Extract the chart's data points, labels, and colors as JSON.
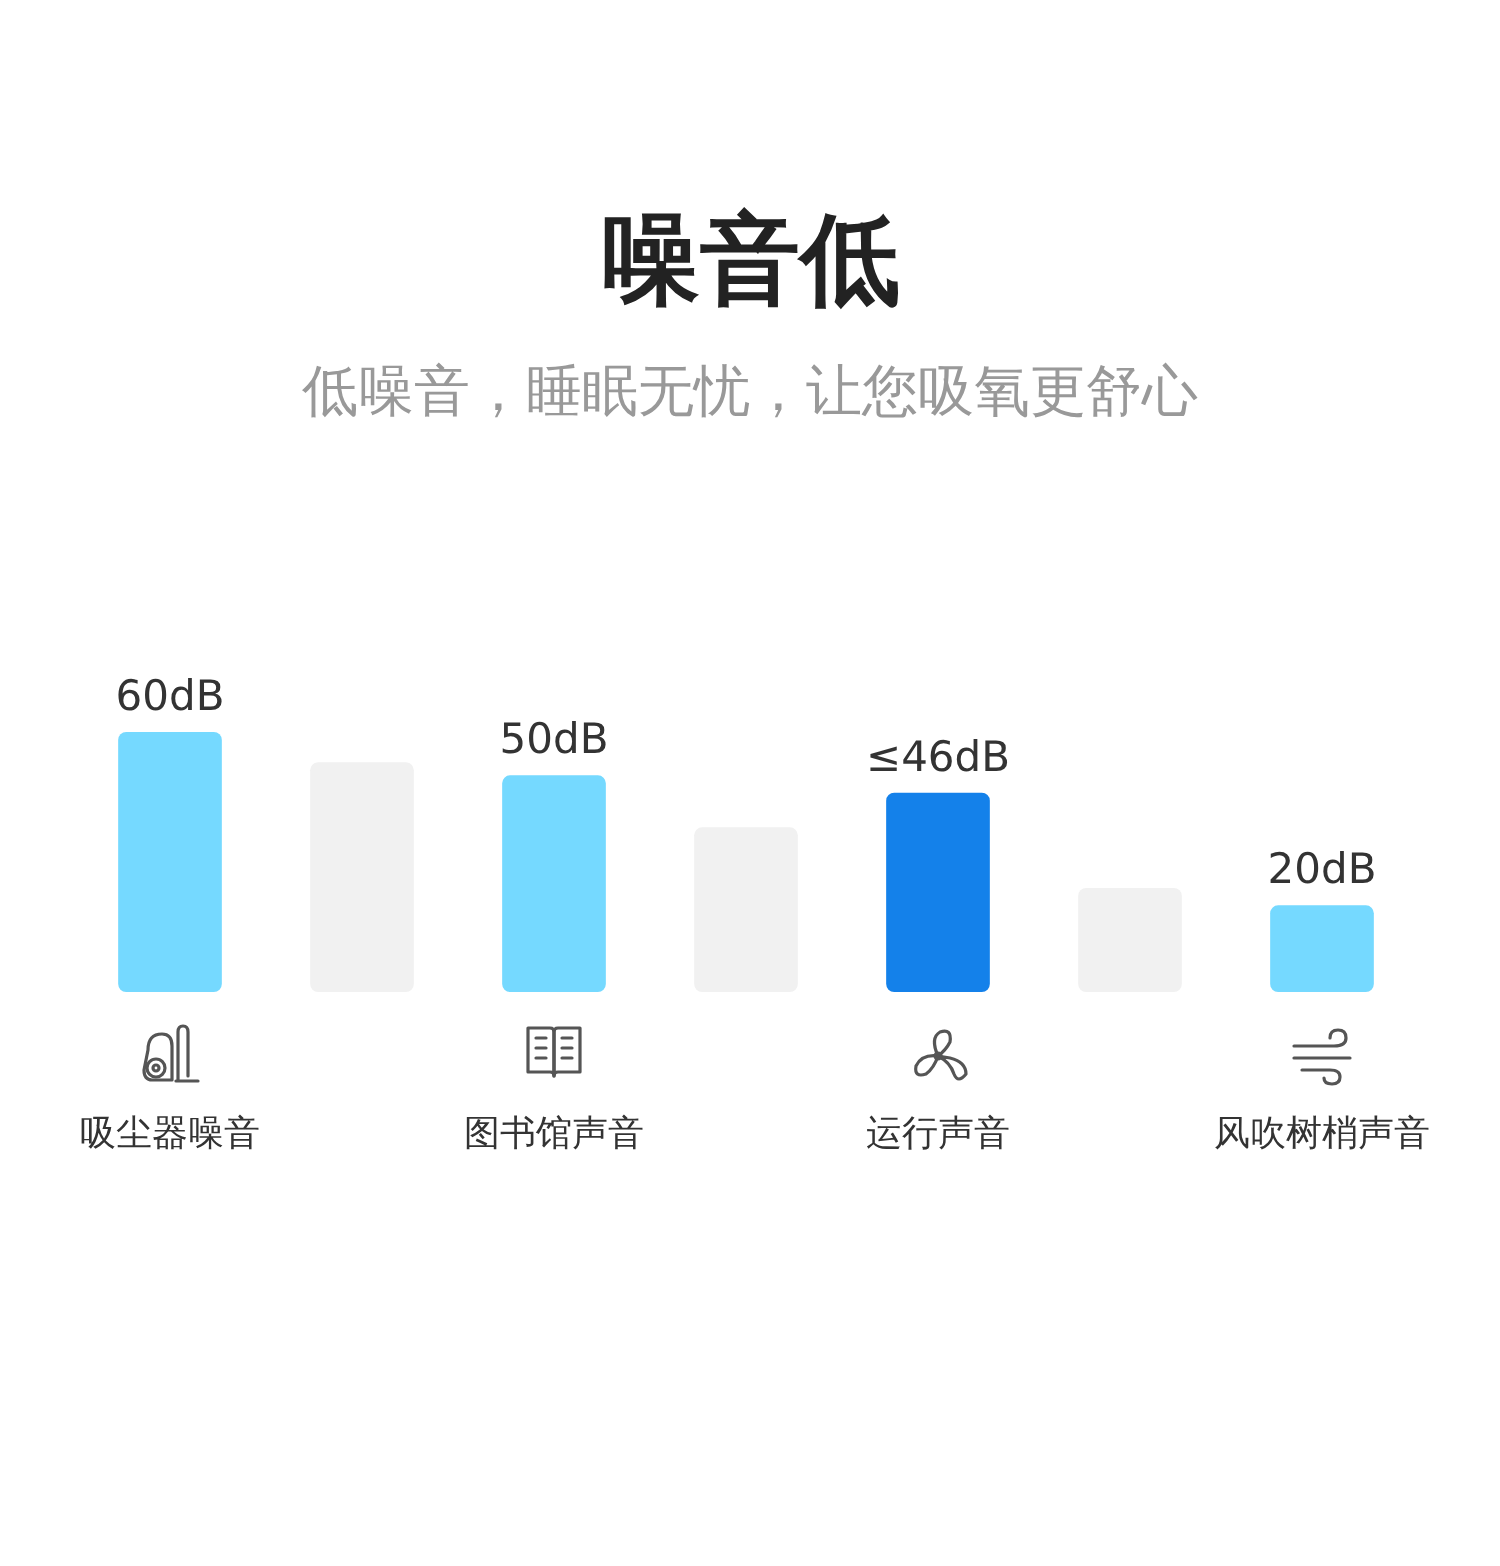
{
  "chart_data": {
    "type": "bar",
    "title": "噪音低",
    "subtitle": "低噪音，睡眠无忧，让您吸氧更舒心",
    "categories": [
      "吸尘器噪音",
      null,
      "图书馆声音",
      null,
      "运行声音",
      null,
      "风吹树梢声音"
    ],
    "series": [
      {
        "values": [
          60,
          null,
          50,
          null,
          46,
          null,
          20
        ],
        "colors": [
          "#75d9ff",
          null,
          "#75d9ff",
          null,
          "#1481ea",
          null,
          "#75d9ff"
        ],
        "value_labels": [
          "60dB",
          null,
          "50dB",
          null,
          "≤46dB",
          null,
          "20dB"
        ]
      },
      {
        "values": [
          null,
          53,
          null,
          38,
          null,
          24,
          null
        ],
        "color": "#f1f1f1"
      }
    ],
    "tick_labels": "x"
  }
}
